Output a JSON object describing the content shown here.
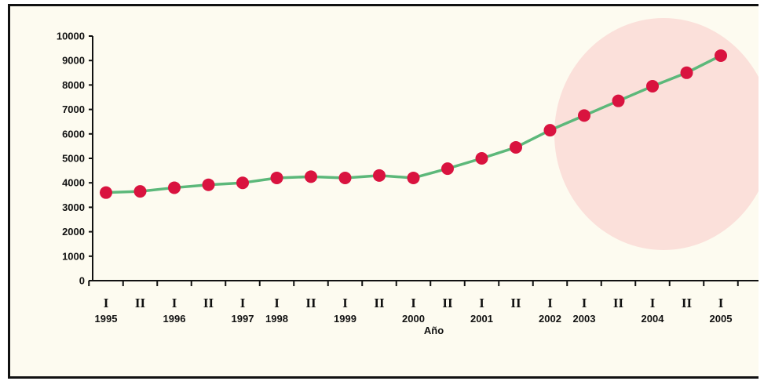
{
  "chart_data": {
    "type": "line",
    "title": "",
    "xlabel": "Año",
    "ylabel": "",
    "ylim": [
      0,
      10000
    ],
    "yticks": [
      0,
      1000,
      2000,
      3000,
      4000,
      5000,
      6000,
      7000,
      8000,
      9000,
      10000
    ],
    "grid": false,
    "x_period_marks": [
      "I",
      "II",
      "I",
      "II",
      "I",
      "I",
      "II",
      "I",
      "II",
      "I",
      "II",
      "I",
      "II",
      "I",
      "I",
      "II",
      "I",
      "II",
      "I"
    ],
    "x_year_labels": [
      {
        "index": 0,
        "label": "1995"
      },
      {
        "index": 2,
        "label": "1996"
      },
      {
        "index": 4,
        "label": "1997"
      },
      {
        "index": 5,
        "label": "1998"
      },
      {
        "index": 7,
        "label": "1999"
      },
      {
        "index": 9,
        "label": "2000"
      },
      {
        "index": 11,
        "label": "2001"
      },
      {
        "index": 13,
        "label": "2002"
      },
      {
        "index": 14,
        "label": "2003"
      },
      {
        "index": 16,
        "label": "2004"
      },
      {
        "index": 18,
        "label": "2005"
      }
    ],
    "values": [
      3600,
      3650,
      3800,
      3920,
      4000,
      4200,
      4250,
      4200,
      4300,
      4200,
      4580,
      5000,
      5450,
      6150,
      6750,
      7350,
      7950,
      8500,
      9200
    ],
    "highlight_range": [
      14,
      18
    ],
    "colors": {
      "line": "#5cb87a",
      "marker": "#d9133f",
      "highlight": "#fbe0da",
      "background": "#fdfbf0",
      "axis": "#111111"
    }
  }
}
